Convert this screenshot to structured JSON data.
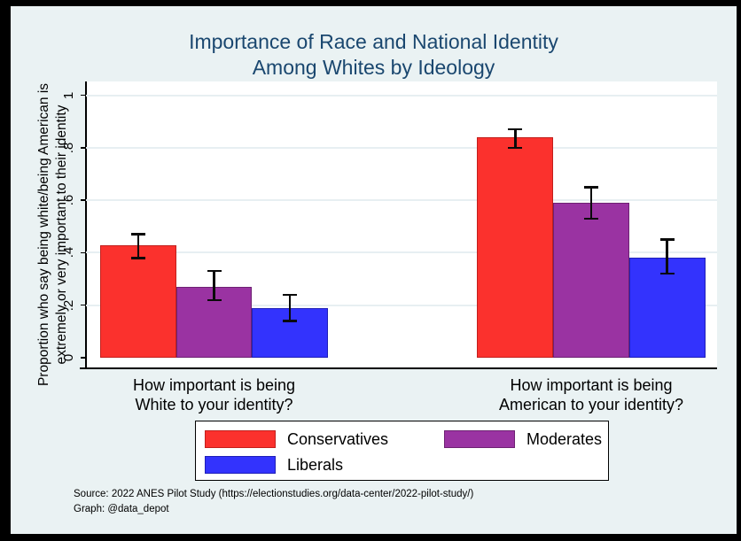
{
  "title": {
    "line1": "Importance of Race and National Identity",
    "line2": "Among Whites by Ideology"
  },
  "y_axis": {
    "label_line1": "Proportion who say being white/being American is",
    "label_line2": "extremely or very important to their identity",
    "ticks": [
      "0",
      ".2",
      ".4",
      ".6",
      ".8",
      "1"
    ]
  },
  "groups": [
    {
      "label_line1": "How important is being",
      "label_line2": "White to your identity?"
    },
    {
      "label_line1": "How important is being",
      "label_line2": "American to your identity?"
    }
  ],
  "legend": {
    "items": [
      {
        "label": "Conservatives",
        "color": "#fb312d",
        "border": "#c21f1c"
      },
      {
        "label": "Moderates",
        "color": "#9a33a2",
        "border": "#6e2173"
      },
      {
        "label": "Liberals",
        "color": "#3333fd",
        "border": "#1f1fb8"
      }
    ]
  },
  "notes": {
    "source": "Source: 2022 ANES Pilot Study (https://electionstudies.org/data-center/2022-pilot-study/)",
    "credit": "Graph: @data_depot"
  },
  "chart_data": {
    "type": "bar",
    "title": "Importance of Race and National Identity Among Whites by Ideology",
    "ylabel": "Proportion who say being white/being American is extremely or very important to their identity",
    "xlabel": "",
    "ylim": [
      0,
      1
    ],
    "ytick_interval": 0.2,
    "grid": true,
    "legend_position": "bottom",
    "error_bars": true,
    "categories": [
      "How important is being White to your identity?",
      "How important is being American to your identity?"
    ],
    "series": [
      {
        "name": "Conservatives",
        "color": "#fb312d",
        "border": "#c21f1c",
        "values": [
          0.43,
          0.84
        ],
        "ci_low": [
          0.38,
          0.8
        ],
        "ci_high": [
          0.47,
          0.87
        ]
      },
      {
        "name": "Moderates",
        "color": "#9a33a2",
        "border": "#6e2173",
        "values": [
          0.27,
          0.59
        ],
        "ci_low": [
          0.22,
          0.53
        ],
        "ci_high": [
          0.33,
          0.65
        ]
      },
      {
        "name": "Liberals",
        "color": "#3333fd",
        "border": "#1f1fb8",
        "values": [
          0.19,
          0.38
        ],
        "ci_low": [
          0.14,
          0.32
        ],
        "ci_high": [
          0.24,
          0.45
        ]
      }
    ]
  }
}
